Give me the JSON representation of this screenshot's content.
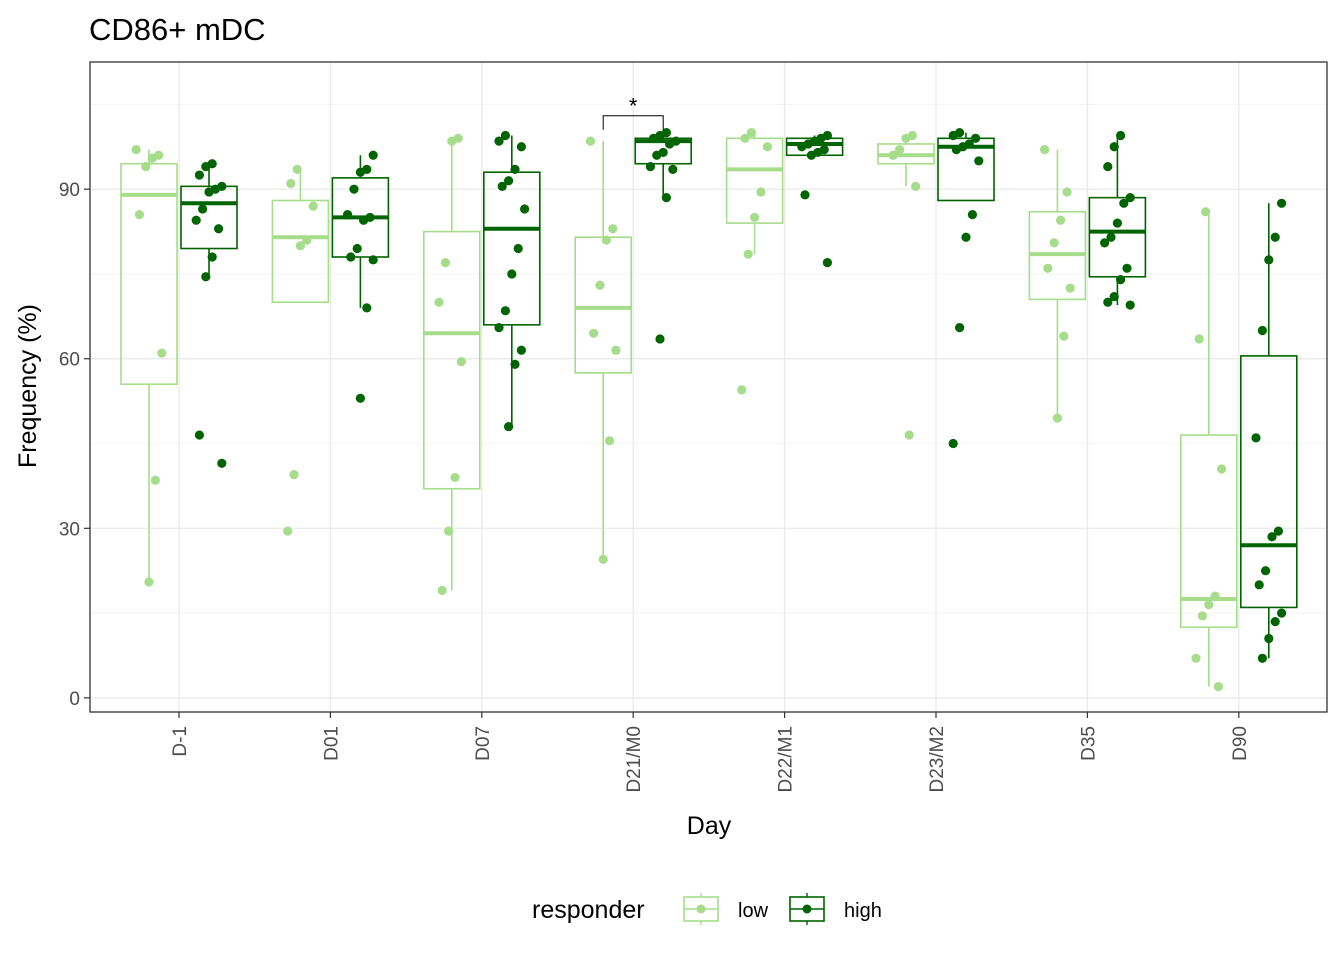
{
  "chart_data": {
    "type": "boxplot",
    "title": "CD86+ mDC",
    "xlabel": "Day",
    "ylabel": "Frequency (%)",
    "categories": [
      "D-1",
      "D01",
      "D07",
      "D21/M0",
      "D22/M1",
      "D23/M2",
      "D35",
      "D90"
    ],
    "ylim": [
      -2.5,
      112.5
    ],
    "yticks": [
      0,
      30,
      60,
      90
    ],
    "grid": true,
    "legend": {
      "title": "responder",
      "position": "bottom"
    },
    "series": [
      {
        "name": "low",
        "color": "#a6dd8a",
        "boxes": [
          {
            "q1": 55.5,
            "median": 89,
            "q3": 94.5,
            "whisker_low": 20.5,
            "whisker_high": 97,
            "points": [
              97,
              96,
              95.5,
              94,
              85.5,
              61,
              38.5,
              20.5
            ]
          },
          {
            "q1": 70,
            "median": 81.5,
            "q3": 88,
            "whisker_low": 70,
            "whisker_high": 93.5,
            "points": [
              93.5,
              91,
              87,
              81,
              80,
              39.5,
              29.5
            ]
          },
          {
            "q1": 37,
            "median": 64.5,
            "q3": 82.5,
            "whisker_low": 19,
            "whisker_high": 99,
            "points": [
              99,
              98.5,
              77,
              70,
              59.5,
              39,
              29.5,
              19
            ]
          },
          {
            "q1": 57.5,
            "median": 69,
            "q3": 81.5,
            "whisker_low": 24.5,
            "whisker_high": 98.5,
            "points": [
              98.5,
              83,
              81,
              73,
              64.5,
              61.5,
              45.5,
              24.5
            ]
          },
          {
            "q1": 84,
            "median": 93.5,
            "q3": 99,
            "whisker_low": 78.5,
            "whisker_high": 100,
            "points": [
              100,
              99,
              97.5,
              89.5,
              85,
              78.5,
              54.5
            ]
          },
          {
            "q1": 94.5,
            "median": 96,
            "q3": 98,
            "whisker_low": 90.5,
            "whisker_high": 99.5,
            "points": [
              99.5,
              99,
              97,
              96,
              90.5,
              46.5
            ]
          },
          {
            "q1": 70.5,
            "median": 78.5,
            "q3": 86,
            "whisker_low": 49.5,
            "whisker_high": 97,
            "points": [
              97,
              89.5,
              84.5,
              80.5,
              76,
              72.5,
              64,
              49.5
            ]
          },
          {
            "q1": 12.5,
            "median": 17.5,
            "q3": 46.5,
            "whisker_low": 2,
            "whisker_high": 86,
            "points": [
              86,
              63.5,
              40.5,
              18,
              16.5,
              14.5,
              7,
              2
            ]
          }
        ]
      },
      {
        "name": "high",
        "color": "#006400",
        "boxes": [
          {
            "q1": 79.5,
            "median": 87.5,
            "q3": 90.5,
            "whisker_low": 74.5,
            "whisker_high": 94.5,
            "points": [
              94.5,
              94,
              92.5,
              90.5,
              90,
              89.5,
              86.5,
              84.5,
              83,
              78,
              74.5,
              46.5,
              41.5
            ]
          },
          {
            "q1": 78,
            "median": 85,
            "q3": 92,
            "whisker_low": 69,
            "whisker_high": 96,
            "points": [
              96,
              93.5,
              93,
              90,
              85.5,
              85,
              84.5,
              79.5,
              78,
              77.5,
              69,
              53
            ]
          },
          {
            "q1": 66,
            "median": 83,
            "q3": 93,
            "whisker_low": 48,
            "whisker_high": 99.5,
            "points": [
              99.5,
              98.5,
              97.5,
              93.5,
              91.5,
              90.5,
              86.5,
              79.5,
              75,
              68.5,
              65.5,
              61.5,
              59,
              48
            ]
          },
          {
            "q1": 94.5,
            "median": 98.5,
            "q3": 99,
            "whisker_low": 88.5,
            "whisker_high": 100,
            "points": [
              100,
              99.5,
              99,
              98.5,
              98,
              96.5,
              96,
              94,
              93.5,
              88.5,
              63.5
            ]
          },
          {
            "q1": 96,
            "median": 98,
            "q3": 99,
            "whisker_low": 96,
            "whisker_high": 99.5,
            "points": [
              99.5,
              99,
              98.5,
              98,
              97.5,
              97,
              96.5,
              96,
              89,
              77
            ]
          },
          {
            "q1": 88,
            "median": 97.5,
            "q3": 99,
            "whisker_low": 88,
            "whisker_high": 100,
            "points": [
              100,
              99.5,
              99,
              98,
              97.5,
              97,
              95,
              85.5,
              81.5,
              65.5,
              45
            ]
          },
          {
            "q1": 74.5,
            "median": 82.5,
            "q3": 88.5,
            "whisker_low": 69.5,
            "whisker_high": 99.5,
            "points": [
              99.5,
              97.5,
              94,
              88.5,
              87.5,
              84,
              81.5,
              80.5,
              76,
              74,
              71,
              70,
              69.5
            ]
          },
          {
            "q1": 16,
            "median": 27,
            "q3": 60.5,
            "whisker_low": 7,
            "whisker_high": 87.5,
            "points": [
              87.5,
              81.5,
              77.5,
              65,
              46,
              29.5,
              28.5,
              22.5,
              20,
              15,
              13.5,
              10.5,
              7
            ]
          }
        ]
      }
    ],
    "annotations": [
      {
        "type": "significance",
        "category": "D21/M0",
        "label": "*",
        "y": 103
      }
    ]
  }
}
